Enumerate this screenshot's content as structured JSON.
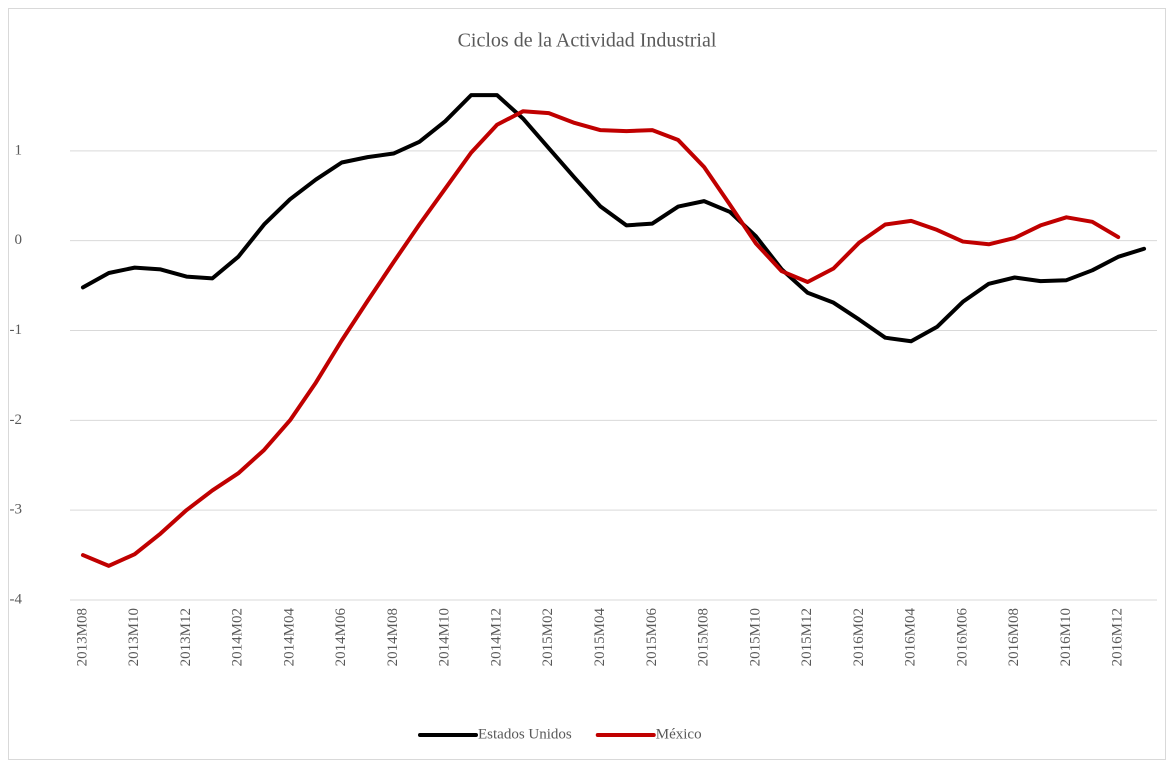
{
  "chart_data": {
    "type": "line",
    "title": "Ciclos de la Actividad Industrial",
    "categories": [
      "2013M08",
      null,
      "2013M10",
      null,
      "2013M12",
      null,
      "2014M02",
      null,
      "2014M04",
      null,
      "2014M06",
      null,
      "2014M08",
      null,
      "2014M10",
      null,
      "2014M12",
      null,
      "2015M02",
      null,
      "2015M04",
      null,
      "2015M06",
      null,
      "2015M08",
      null,
      "2015M10",
      null,
      "2015M12",
      null,
      "2016M02",
      null,
      "2016M04",
      null,
      "2016M06",
      null,
      "2016M08",
      null,
      "2016M10",
      null,
      "2016M12",
      null
    ],
    "series": [
      {
        "name": "Estados Unidos",
        "color": "#000000",
        "values": [
          -0.52,
          -0.36,
          -0.3,
          -0.32,
          -0.4,
          -0.42,
          -0.18,
          0.18,
          0.46,
          0.68,
          0.87,
          0.93,
          0.97,
          1.1,
          1.33,
          1.62,
          1.62,
          1.36,
          1.03,
          0.7,
          0.38,
          0.17,
          0.19,
          0.38,
          0.44,
          0.32,
          0.05,
          -0.32,
          -0.58,
          -0.69,
          -0.88,
          -1.08,
          -1.12,
          -0.96,
          -0.68,
          -0.48,
          -0.41,
          -0.45,
          -0.44,
          -0.33,
          -0.18,
          -0.09
        ]
      },
      {
        "name": "México",
        "color": "#c00000",
        "values": [
          -3.5,
          -3.62,
          -3.49,
          -3.26,
          -3.0,
          -2.78,
          -2.59,
          -2.33,
          -2.0,
          -1.58,
          -1.11,
          -0.67,
          -0.24,
          0.18,
          0.58,
          0.98,
          1.29,
          1.44,
          1.42,
          1.31,
          1.23,
          1.22,
          1.23,
          1.12,
          0.82,
          0.4,
          -0.03,
          -0.34,
          -0.46,
          -0.31,
          -0.02,
          0.18,
          0.22,
          0.12,
          -0.01,
          -0.04,
          0.03,
          0.17,
          0.26,
          0.21,
          0.04,
          null
        ]
      }
    ],
    "ylim": [
      -4,
      2
    ],
    "yticks": [
      -4,
      -3,
      -2,
      -1,
      0,
      1
    ],
    "grid": true,
    "legend": "bottom"
  }
}
